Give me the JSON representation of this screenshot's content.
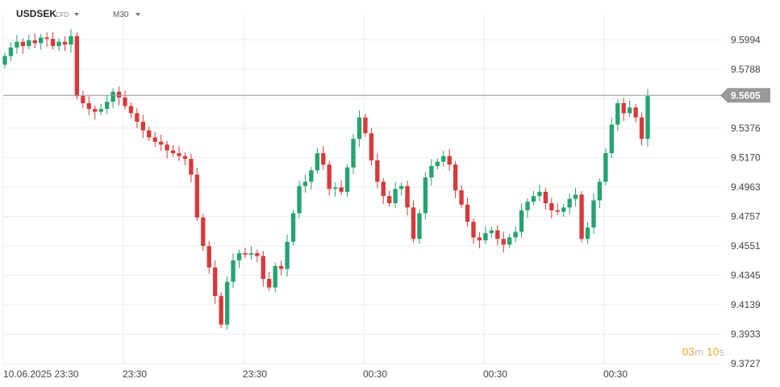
{
  "header": {
    "symbol": "USDSEK",
    "instrument_type": "CFD",
    "timeframe": "M30"
  },
  "countdown": {
    "minutes": "03",
    "minutes_unit": "m",
    "seconds": "10",
    "seconds_unit": "s"
  },
  "colors": {
    "up": "#26a36f",
    "down": "#d63a3a",
    "grid": "#eeeeee",
    "price_line": "#999999",
    "price_tag": "#999999"
  },
  "chart_data": {
    "type": "candlestick",
    "title": "",
    "xlabel": "",
    "ylabel": "",
    "ylim": [
      9.3727,
      9.6094
    ],
    "y_ticks": [
      "9.5994",
      "9.5788",
      "9.5582",
      "9.5376",
      "9.5170",
      "9.4963",
      "9.4757",
      "9.4551",
      "9.4345",
      "9.4139",
      "9.3933",
      "9.3727"
    ],
    "x_ticks": [
      "10.06.2025",
      "23:30",
      "23:30",
      "23:30",
      "00:30",
      "00:30",
      "00:30"
    ],
    "current_price": "9.5605",
    "grid": true,
    "bar_count": 108,
    "highest_visible": 9.6025,
    "lowest_visible": 9.3755,
    "close_series": [
      9.588,
      9.594,
      9.598,
      9.595,
      9.599,
      9.597,
      9.601,
      9.6,
      9.595,
      9.598,
      9.596,
      9.602,
      9.56,
      9.555,
      9.551,
      9.549,
      9.551,
      9.556,
      9.563,
      9.559,
      9.553,
      9.548,
      9.542,
      9.536,
      9.531,
      9.528,
      9.526,
      9.522,
      9.52,
      9.518,
      9.516,
      9.505,
      9.475,
      9.455,
      9.44,
      9.42,
      9.4,
      9.43,
      9.445,
      9.45,
      9.449,
      9.45,
      9.448,
      9.432,
      9.426,
      9.441,
      9.439,
      9.458,
      9.478,
      9.497,
      9.5,
      9.508,
      9.52,
      9.512,
      9.495,
      9.496,
      9.493,
      9.51,
      9.53,
      9.545,
      9.534,
      9.515,
      9.5,
      9.49,
      9.485,
      9.495,
      9.497,
      9.482,
      9.46,
      9.478,
      9.503,
      9.511,
      9.514,
      9.518,
      9.512,
      9.494,
      9.484,
      9.472,
      9.461,
      9.459,
      9.464,
      9.466,
      9.46,
      9.456,
      9.461,
      9.465,
      9.48,
      9.486,
      9.49,
      9.493,
      9.485,
      9.48,
      9.479,
      9.482,
      9.488,
      9.491,
      9.46,
      9.468,
      9.487,
      9.5,
      9.52,
      9.54,
      9.555,
      9.548,
      9.552,
      9.545,
      9.53,
      9.56
    ]
  }
}
